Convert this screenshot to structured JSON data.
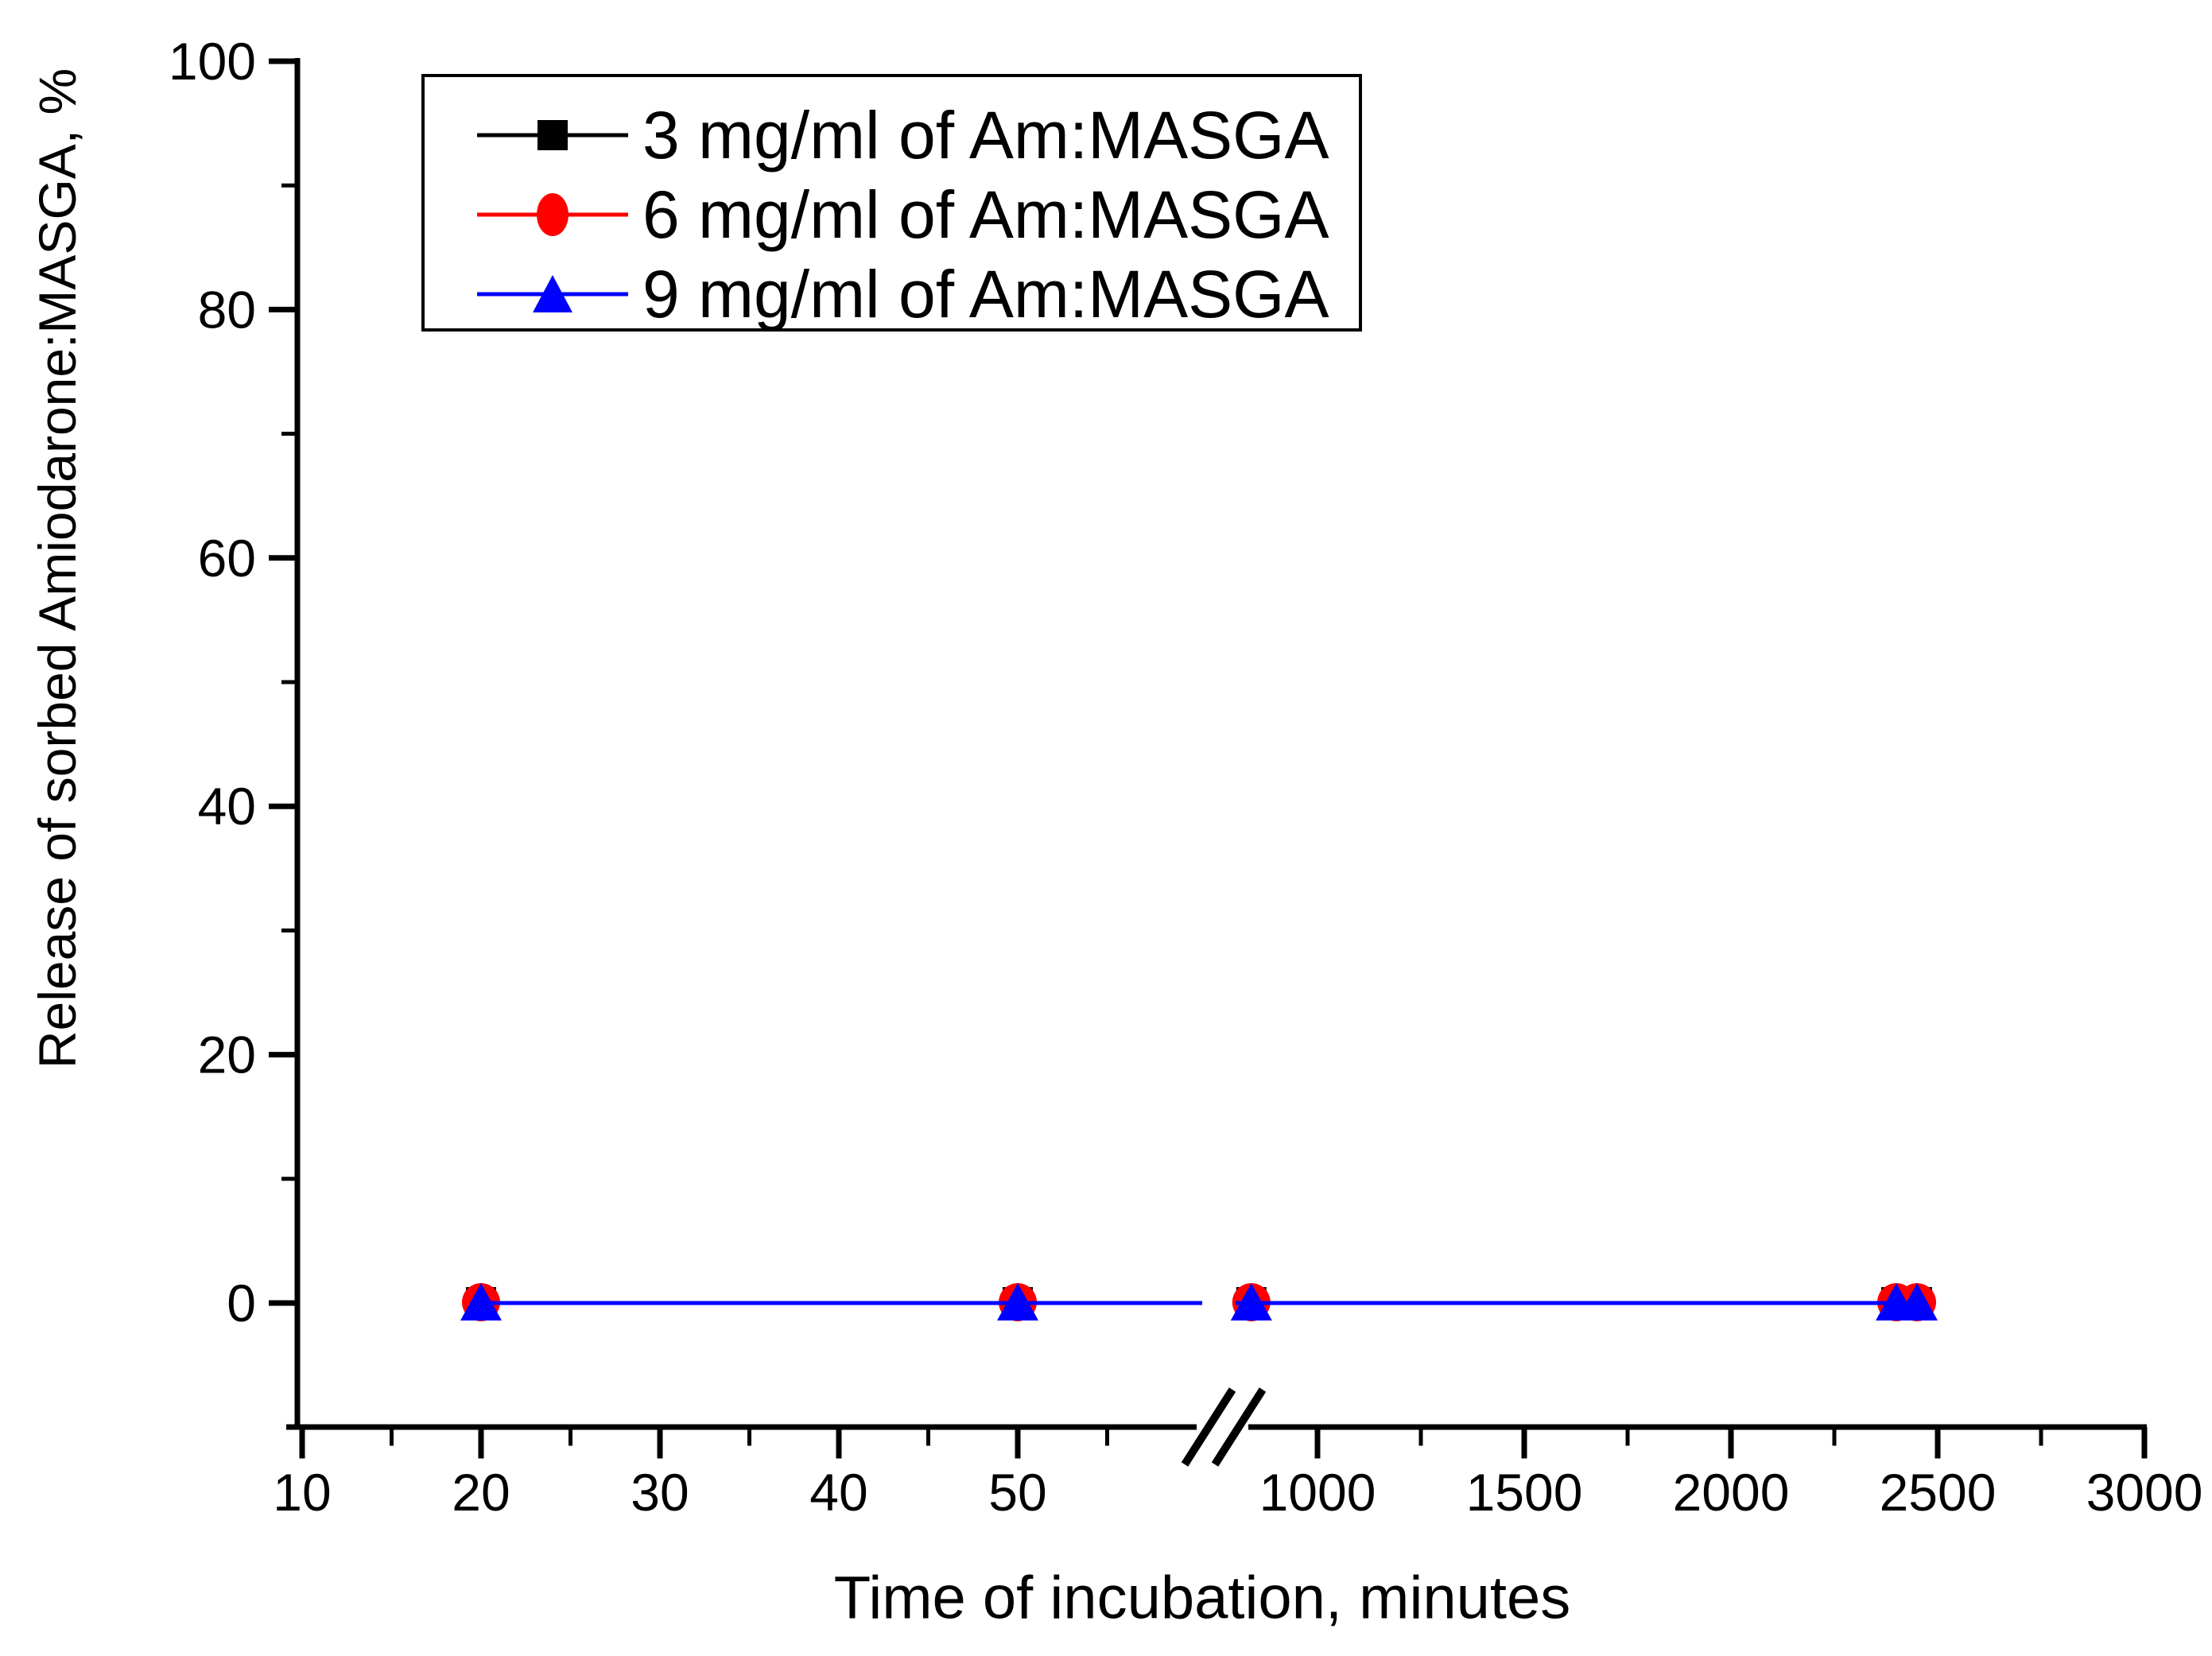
{
  "figure": {
    "background": "#ffffff"
  },
  "chart_data": {
    "type": "line",
    "title": "",
    "xlabel": "Time of incubation, minutes",
    "ylabel": "Release of sorbed Amiodarone:MASGA, %",
    "x_axis": {
      "broken_axis": true,
      "segment_left": {
        "range": [
          10,
          59
        ],
        "major_ticks": [
          10,
          20,
          30,
          40,
          50
        ],
        "minor_ticks": [
          15,
          25,
          35,
          45,
          55
        ]
      },
      "segment_right": {
        "range": [
          845,
          3005
        ],
        "major_ticks": [
          1000,
          1500,
          2000,
          2500,
          3000
        ],
        "minor_ticks": [
          1250,
          1750,
          2250,
          2750
        ]
      },
      "tick_labels_left": [
        "10",
        "20",
        "30",
        "40",
        "50"
      ],
      "tick_labels_right": [
        "1000",
        "1500",
        "2000",
        "2500",
        "3000"
      ]
    },
    "y_axis": {
      "range_displayed": [
        -10,
        100
      ],
      "major_ticks": [
        0,
        20,
        40,
        60,
        80,
        100
      ],
      "minor_ticks": [
        10,
        30,
        50,
        70,
        90
      ],
      "tick_labels": [
        "0",
        "20",
        "40",
        "60",
        "80",
        "100"
      ]
    },
    "grid": false,
    "legend_position": "top-left-inside",
    "series": [
      {
        "name": "3 mg/ml of Am:MASGA",
        "color": "#000000",
        "marker": "square",
        "x": [
          20,
          50,
          840,
          2400,
          2450
        ],
        "y": [
          0,
          0,
          0,
          0,
          0
        ]
      },
      {
        "name": "6 mg/ml of Am:MASGA",
        "color": "#ff0000",
        "marker": "circle",
        "x": [
          20,
          50,
          840,
          2400,
          2450
        ],
        "y": [
          0,
          0,
          0,
          0,
          0
        ]
      },
      {
        "name": "9 mg/ml of Am:MASGA",
        "color": "#0000ff",
        "marker": "triangle",
        "x": [
          20,
          50,
          840,
          2400,
          2450
        ],
        "y": [
          0,
          0,
          0,
          0,
          0
        ]
      }
    ],
    "colors": {
      "axis": "#000000",
      "series_3mg": "#000000",
      "series_6mg": "#ff0000",
      "series_9mg": "#0000ff"
    }
  }
}
